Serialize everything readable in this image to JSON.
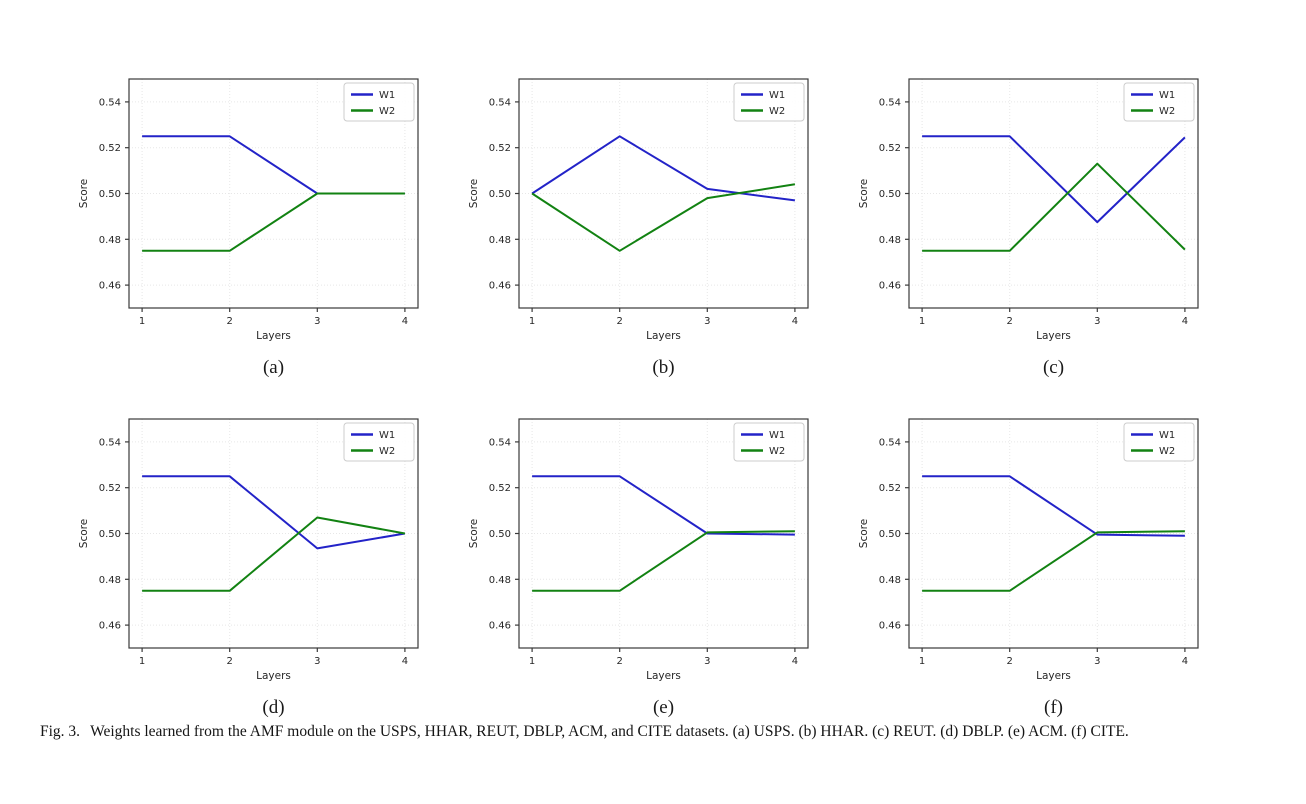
{
  "page": {
    "background": "#ffffff"
  },
  "figure_caption": {
    "label": "Fig. 3.",
    "text": "Weights learned from the AMF module on the USPS, HHAR, REUT, DBLP, ACM, and CITE datasets. (a) USPS. (b) HHAR. (c) REUT. (d) DBLP. (e) ACM. (f) CITE."
  },
  "colors": {
    "w1": "#2323c8",
    "w2": "#128212",
    "spine": "#3a3a3a",
    "grid": "#e7e7e7",
    "tick_text": "#262626",
    "legend_border": "#cccccc",
    "legend_bg": "#ffffff"
  },
  "axis": {
    "xlabel": "Layers",
    "ylabel": "Score",
    "xlim": [
      0.85,
      4.15
    ],
    "ylim": [
      0.45,
      0.55
    ],
    "xticks": [
      1,
      2,
      3,
      4
    ],
    "xtick_labels": [
      "1",
      "2",
      "3",
      "4"
    ],
    "yticks": [
      0.46,
      0.48,
      0.5,
      0.52,
      0.54
    ],
    "ytick_labels": [
      "0.46",
      "0.48",
      "0.50",
      "0.52",
      "0.54"
    ],
    "grid": true,
    "legend_position": "upper right"
  },
  "legend": {
    "entries": [
      "W1",
      "W2"
    ]
  },
  "chart_data": [
    {
      "type": "line",
      "caption": "(a)",
      "dataset": "USPS",
      "x": [
        1,
        2,
        3,
        4
      ],
      "series": [
        {
          "name": "W1",
          "values": [
            0.525,
            0.525,
            0.5,
            0.5
          ]
        },
        {
          "name": "W2",
          "values": [
            0.475,
            0.475,
            0.5,
            0.5
          ]
        }
      ]
    },
    {
      "type": "line",
      "caption": "(b)",
      "dataset": "HHAR",
      "x": [
        1,
        2,
        3,
        4
      ],
      "series": [
        {
          "name": "W1",
          "values": [
            0.5,
            0.525,
            0.502,
            0.497
          ]
        },
        {
          "name": "W2",
          "values": [
            0.5,
            0.475,
            0.498,
            0.504
          ]
        }
      ]
    },
    {
      "type": "line",
      "caption": "(c)",
      "dataset": "REUT",
      "x": [
        1,
        2,
        3,
        4
      ],
      "series": [
        {
          "name": "W1",
          "values": [
            0.525,
            0.525,
            0.4875,
            0.5245
          ]
        },
        {
          "name": "W2",
          "values": [
            0.475,
            0.475,
            0.513,
            0.4755
          ]
        }
      ]
    },
    {
      "type": "line",
      "caption": "(d)",
      "dataset": "DBLP",
      "x": [
        1,
        2,
        3,
        4
      ],
      "series": [
        {
          "name": "W1",
          "values": [
            0.525,
            0.525,
            0.4935,
            0.5
          ]
        },
        {
          "name": "W2",
          "values": [
            0.475,
            0.475,
            0.507,
            0.5
          ]
        }
      ]
    },
    {
      "type": "line",
      "caption": "(e)",
      "dataset": "ACM",
      "x": [
        1,
        2,
        3,
        4
      ],
      "series": [
        {
          "name": "W1",
          "values": [
            0.525,
            0.525,
            0.5,
            0.4995
          ]
        },
        {
          "name": "W2",
          "values": [
            0.475,
            0.475,
            0.5005,
            0.501
          ]
        }
      ]
    },
    {
      "type": "line",
      "caption": "(f)",
      "dataset": "CITE",
      "x": [
        1,
        2,
        3,
        4
      ],
      "series": [
        {
          "name": "W1",
          "values": [
            0.525,
            0.525,
            0.4995,
            0.499
          ]
        },
        {
          "name": "W2",
          "values": [
            0.475,
            0.475,
            0.5005,
            0.501
          ]
        }
      ]
    }
  ]
}
